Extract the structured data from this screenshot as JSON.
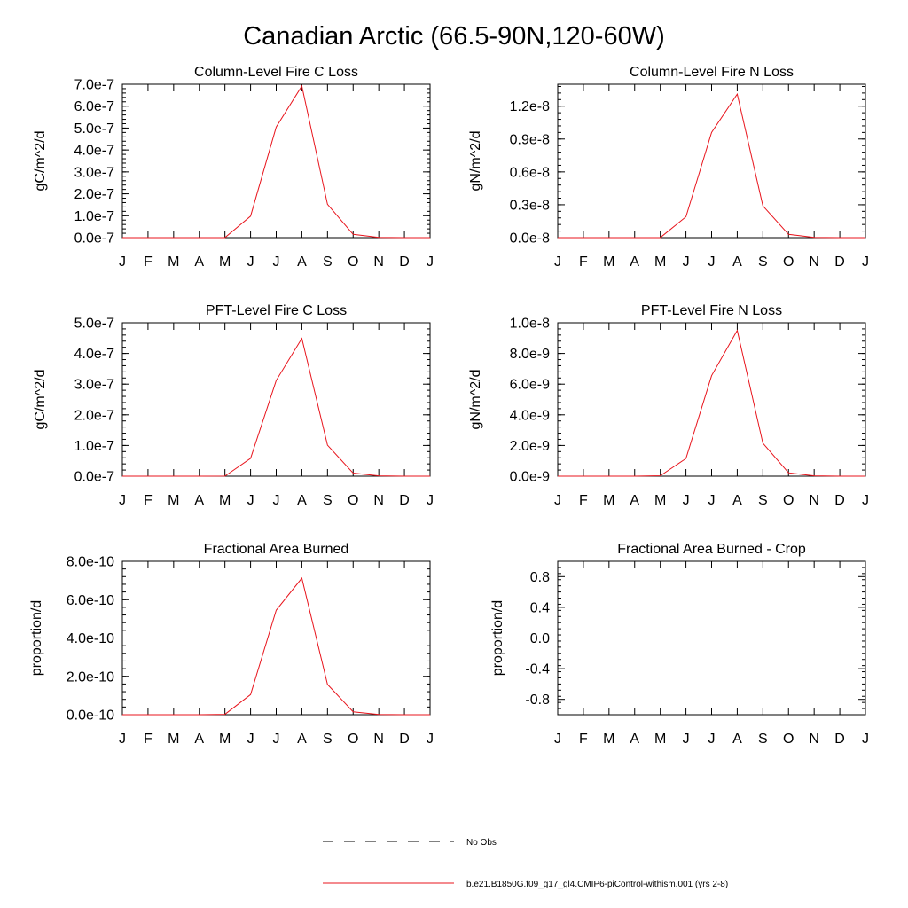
{
  "title": "Canadian Arctic (66.5-90N,120-60W)",
  "months": [
    "J",
    "F",
    "M",
    "A",
    "M",
    "J",
    "J",
    "A",
    "S",
    "O",
    "N",
    "D",
    "J"
  ],
  "legend": {
    "obs_label": "No Obs",
    "model_label": "b.e21.B1850G.f09_g17_gl4.CMIP6-piControl-withism.001 (yrs 2-8)"
  },
  "colors": {
    "model": "#e8141c",
    "axis": "#000000"
  },
  "chart_data": [
    {
      "type": "line",
      "title": "Column-Level Fire C Loss",
      "ylabel": "gC/m^2/d",
      "ylim": [
        0,
        7e-07
      ],
      "yticks": [
        0,
        1e-07,
        2e-07,
        3e-07,
        4e-07,
        5e-07,
        6e-07,
        7e-07
      ],
      "yticklabels": [
        "0.0e-7",
        "1.0e-7",
        "2.0e-7",
        "3.0e-7",
        "4.0e-7",
        "5.0e-7",
        "6.0e-7",
        "7.0e-7"
      ],
      "x": [
        1,
        2,
        3,
        4,
        5,
        6,
        7,
        8,
        9,
        10,
        11,
        12,
        13
      ],
      "series": [
        {
          "name": "b.e21.B1850G.f09_g17_gl4.CMIP6-piControl-withism.001 (yrs 2-8)",
          "values": [
            0,
            0,
            0,
            0,
            2e-10,
            9.8e-08,
            5.05e-07,
            6.92e-07,
            1.52e-07,
            1.5e-08,
            1e-09,
            0,
            0
          ]
        }
      ]
    },
    {
      "type": "line",
      "title": "Column-Level Fire N Loss",
      "ylabel": "gN/m^2/d",
      "ylim": [
        0,
        1.4e-08
      ],
      "yticks": [
        0,
        3e-09,
        6e-09,
        9e-09,
        1.2e-08
      ],
      "yticklabels": [
        "0.0e-8",
        "0.3e-8",
        "0.6e-8",
        "0.9e-8",
        "1.2e-8"
      ],
      "x": [
        1,
        2,
        3,
        4,
        5,
        6,
        7,
        8,
        9,
        10,
        11,
        12,
        13
      ],
      "series": [
        {
          "name": "b.e21.B1850G.f09_g17_gl4.CMIP6-piControl-withism.001 (yrs 2-8)",
          "values": [
            0,
            0,
            0,
            0,
            4e-12,
            1.9e-09,
            9.6e-09,
            1.31e-08,
            2.9e-09,
            3e-10,
            2e-11,
            0,
            0
          ]
        }
      ]
    },
    {
      "type": "line",
      "title": "PFT-Level Fire C Loss",
      "ylabel": "gC/m^2/d",
      "ylim": [
        0,
        5e-07
      ],
      "yticks": [
        0,
        1e-07,
        2e-07,
        3e-07,
        4e-07,
        5e-07
      ],
      "yticklabels": [
        "0.0e-7",
        "1.0e-7",
        "2.0e-7",
        "3.0e-7",
        "4.0e-7",
        "5.0e-7"
      ],
      "x": [
        1,
        2,
        3,
        4,
        5,
        6,
        7,
        8,
        9,
        10,
        11,
        12,
        13
      ],
      "series": [
        {
          "name": "b.e21.B1850G.f09_g17_gl4.CMIP6-piControl-withism.001 (yrs 2-8)",
          "values": [
            0,
            0,
            0,
            0,
            2e-10,
            5.8e-08,
            3.12e-07,
            4.49e-07,
            1.01e-07,
            1e-08,
            1e-09,
            0,
            0
          ]
        }
      ]
    },
    {
      "type": "line",
      "title": "PFT-Level Fire N Loss",
      "ylabel": "gN/m^2/d",
      "ylim": [
        0,
        1e-08
      ],
      "yticks": [
        0,
        2e-09,
        4e-09,
        6e-09,
        8e-09,
        1e-08
      ],
      "yticklabels": [
        "0.0e-9",
        "2.0e-9",
        "4.0e-9",
        "6.0e-9",
        "8.0e-9",
        "1.0e-8"
      ],
      "x": [
        1,
        2,
        3,
        4,
        5,
        6,
        7,
        8,
        9,
        10,
        11,
        12,
        13
      ],
      "series": [
        {
          "name": "b.e21.B1850G.f09_g17_gl4.CMIP6-piControl-withism.001 (yrs 2-8)",
          "values": [
            0,
            0,
            0,
            0,
            3e-11,
            1.15e-09,
            6.55e-09,
            9.5e-09,
            2.15e-09,
            2.2e-10,
            2e-11,
            0,
            0
          ]
        }
      ]
    },
    {
      "type": "line",
      "title": "Fractional Area Burned",
      "ylabel": "proportion/d",
      "ylim": [
        0,
        8e-10
      ],
      "yticks": [
        0,
        2e-10,
        4e-10,
        6e-10,
        8e-10
      ],
      "yticklabels": [
        "0.0e-10",
        "2.0e-10",
        "4.0e-10",
        "6.0e-10",
        "8.0e-10"
      ],
      "x": [
        1,
        2,
        3,
        4,
        5,
        6,
        7,
        8,
        9,
        10,
        11,
        12,
        13
      ],
      "series": [
        {
          "name": "b.e21.B1850G.f09_g17_gl4.CMIP6-piControl-withism.001 (yrs 2-8)",
          "values": [
            0,
            0,
            0,
            0,
            2e-12,
            1.05e-10,
            5.45e-10,
            7.12e-10,
            1.58e-10,
            1.5e-11,
            1e-12,
            0,
            0
          ]
        }
      ]
    },
    {
      "type": "line",
      "title": "Fractional Area Burned - Crop",
      "ylabel": "proportion/d",
      "ylim": [
        -1.0,
        1.0
      ],
      "yticks": [
        -0.8,
        -0.4,
        0,
        0.4,
        0.8
      ],
      "yticklabels": [
        "-0.8",
        "-0.4",
        "0.0",
        "0.4",
        "0.8"
      ],
      "x": [
        1,
        2,
        3,
        4,
        5,
        6,
        7,
        8,
        9,
        10,
        11,
        12,
        13
      ],
      "series": [
        {
          "name": "b.e21.B1850G.f09_g17_gl4.CMIP6-piControl-withism.001 (yrs 2-8)",
          "values": [
            0,
            0,
            0,
            0,
            0,
            0,
            0,
            0,
            0,
            0,
            0,
            0,
            0
          ]
        }
      ]
    }
  ]
}
